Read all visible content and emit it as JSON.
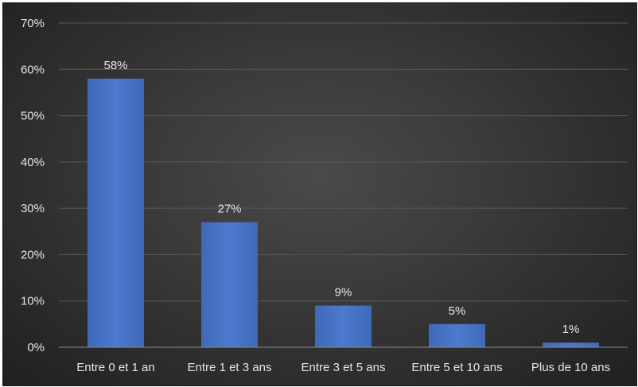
{
  "chart_data": {
    "type": "bar",
    "title": "",
    "xlabel": "",
    "ylabel": "",
    "categories": [
      "Entre 0 et 1 an",
      "Entre 1 et 3 ans",
      "Entre 3 et 5 ans",
      "Entre 5 et 10 ans",
      "Plus de 10 ans"
    ],
    "values": [
      58,
      27,
      9,
      5,
      1
    ],
    "value_labels": [
      "58%",
      "27%",
      "9%",
      "5%",
      "1%"
    ],
    "ylim": [
      0,
      70
    ],
    "yticks": [
      0,
      10,
      20,
      30,
      40,
      50,
      60,
      70
    ],
    "ytick_labels": [
      "0%",
      "10%",
      "20%",
      "30%",
      "40%",
      "50%",
      "60%",
      "70%"
    ],
    "grid": true,
    "legend": "none",
    "colors": {
      "bar": "#4472c4",
      "bar_highlight": "#5b8ad8",
      "gridline": "#5a5a5a",
      "axis": "#8c8c8c",
      "text": "#e6e6e6"
    }
  }
}
